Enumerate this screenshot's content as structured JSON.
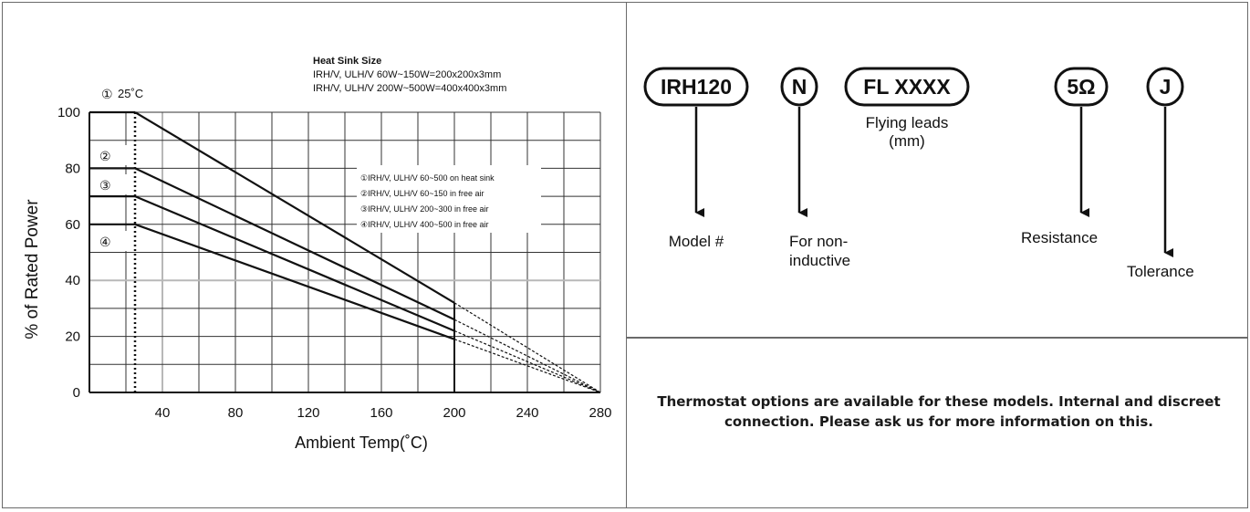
{
  "chart_data": {
    "type": "line",
    "title": "",
    "xlabel": "Ambient Temp(˚C)",
    "ylabel": "% of Rated Power",
    "xlim": [
      0,
      280
    ],
    "ylim": [
      0,
      100
    ],
    "x_ticks": [
      40,
      80,
      120,
      160,
      200,
      240,
      280
    ],
    "y_ticks": [
      0,
      20,
      40,
      60,
      80,
      100
    ],
    "grid": true,
    "knee_label": "25˚C",
    "series": [
      {
        "id": "1",
        "marker": "①",
        "points": [
          [
            25,
            100
          ],
          [
            200,
            32
          ]
        ],
        "extension": [
          [
            200,
            32
          ],
          [
            280,
            0
          ]
        ]
      },
      {
        "id": "2",
        "marker": "②",
        "points": [
          [
            25,
            80
          ],
          [
            200,
            26
          ]
        ],
        "extension": [
          [
            200,
            26
          ],
          [
            280,
            0
          ]
        ]
      },
      {
        "id": "3",
        "marker": "③",
        "points": [
          [
            25,
            70
          ],
          [
            200,
            22
          ]
        ],
        "extension": [
          [
            200,
            22
          ],
          [
            280,
            0
          ]
        ]
      },
      {
        "id": "4",
        "marker": "④",
        "points": [
          [
            25,
            60
          ],
          [
            200,
            19
          ]
        ],
        "extension": [
          [
            200,
            19
          ],
          [
            280,
            0
          ]
        ]
      }
    ],
    "heat_sink": {
      "title": "Heat Sink Size",
      "lines": [
        "IRH/V, ULH/V 60W~150W=200x200x3mm",
        "IRH/V, ULH/V 200W~500W=400x400x3mm"
      ]
    },
    "legend_position": "upper-right",
    "legend": [
      "①IRH/V, ULH/V 60~500 on heat sink",
      "②IRH/V, ULH/V 60~150 in free air",
      "③IRH/V, ULH/V 200~300 in free air",
      "④IRH/V, ULH/V 400~500 in free air"
    ]
  },
  "part_code": {
    "segments": [
      "IRH120",
      "N",
      "FL XXXX",
      "5Ω",
      "J"
    ],
    "labels": {
      "model": "Model #",
      "noninductive_1": "For non-",
      "noninductive_2": "inductive",
      "flying_1": "Flying leads",
      "flying_2": "(mm)",
      "resistance": "Resistance",
      "tolerance": "Tolerance"
    }
  },
  "note": {
    "text": "Thermostat options are available for these models.  Internal and discreet connection.  Please ask us for more information on this."
  }
}
